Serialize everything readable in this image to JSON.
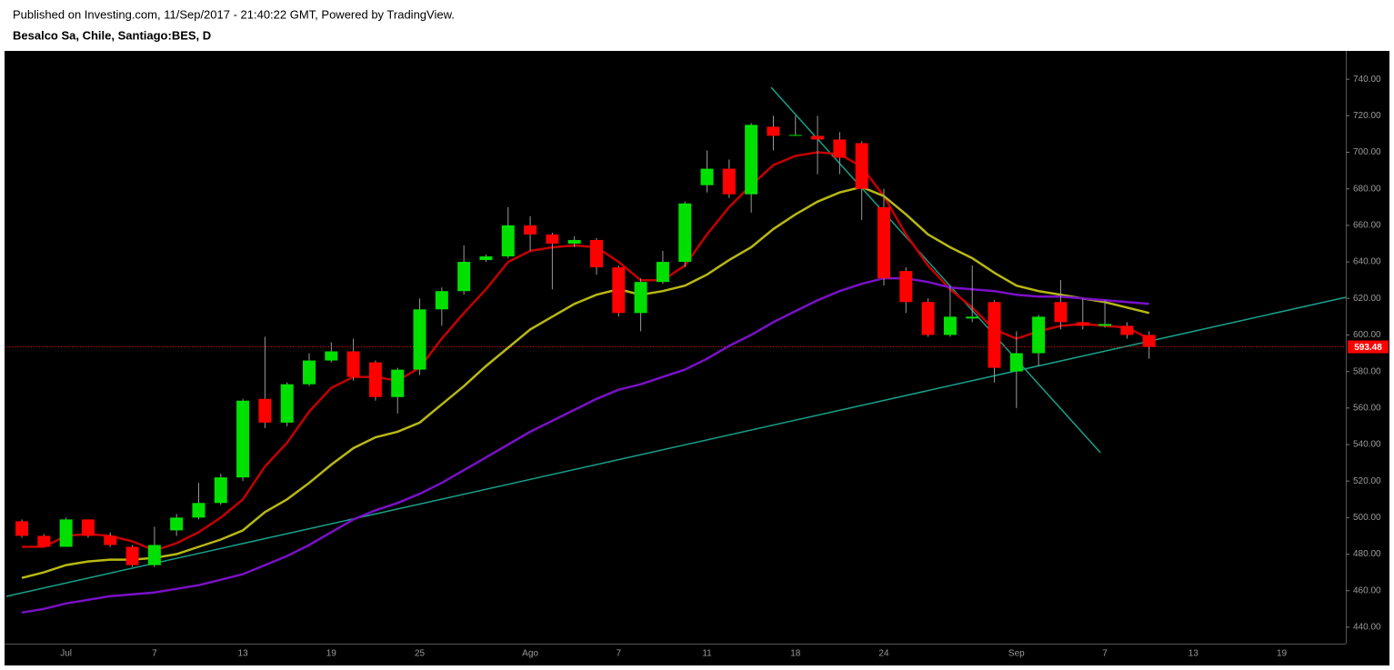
{
  "header": {
    "published": "Published on Investing.com, 11/Sep/2017 - 21:40:22 GMT, Powered by TradingView.",
    "symbol": "Besalco Sa, Chile, Santiago:BES, D"
  },
  "chart_data": {
    "type": "candlestick",
    "categories": [
      null,
      null,
      "Jul",
      null,
      null,
      null,
      "7",
      null,
      null,
      null,
      "13",
      null,
      null,
      null,
      "19",
      null,
      null,
      null,
      "25",
      null,
      null,
      null,
      null,
      "Ago",
      null,
      null,
      null,
      "7",
      null,
      null,
      null,
      "11",
      null,
      null,
      null,
      "18",
      null,
      null,
      null,
      "24",
      null,
      null,
      null,
      null,
      null,
      "Sep",
      null,
      null,
      null,
      "7",
      null,
      null,
      null,
      "13",
      null,
      null,
      null,
      "19",
      null,
      null
    ],
    "open": [
      498,
      490,
      484,
      499,
      490,
      484,
      474,
      493,
      500,
      508,
      522,
      565,
      552,
      573,
      586,
      591,
      585,
      566,
      581,
      614,
      624,
      641,
      643,
      660,
      655,
      650,
      652,
      637,
      612,
      629,
      640,
      682,
      691,
      677,
      714,
      709,
      709,
      707,
      705,
      670,
      635,
      618,
      600,
      609,
      618,
      580,
      590,
      618,
      607,
      605,
      605,
      600,
      null,
      null,
      null,
      null,
      null,
      null,
      null,
      null
    ],
    "high": [
      499,
      491,
      500,
      499,
      492,
      485,
      495,
      502,
      519,
      524,
      565,
      599,
      574,
      590,
      596,
      598,
      586,
      582,
      620,
      626,
      649,
      644,
      670,
      665,
      656,
      654,
      653,
      638,
      631,
      646,
      673,
      701,
      696,
      716,
      720,
      720,
      720,
      711,
      706,
      680,
      637,
      620,
      627,
      638,
      619,
      602,
      611,
      630,
      620,
      619,
      607,
      602,
      null,
      null,
      null,
      null,
      null,
      null,
      null,
      null
    ],
    "low": [
      489,
      484,
      484,
      489,
      484,
      473,
      473,
      490,
      499,
      507,
      520,
      549,
      550,
      572,
      585,
      575,
      564,
      557,
      578,
      605,
      622,
      640,
      642,
      646,
      625,
      648,
      633,
      610,
      602,
      628,
      637,
      678,
      675,
      667,
      701,
      709,
      688,
      688,
      663,
      627,
      612,
      599,
      599,
      607,
      574,
      560,
      583,
      603,
      603,
      604,
      598,
      587,
      null,
      null,
      null,
      null,
      null,
      null,
      null,
      null
    ],
    "close": [
      490,
      484,
      499,
      490,
      485,
      474,
      485,
      500,
      508,
      522,
      564,
      552,
      573,
      586,
      591,
      577,
      566,
      581,
      614,
      624,
      640,
      643,
      660,
      655,
      650,
      652,
      637,
      612,
      629,
      640,
      672,
      691,
      677,
      715,
      709,
      709.5,
      707,
      697,
      680,
      631,
      618,
      600,
      610,
      610,
      582,
      590,
      610,
      607,
      605,
      606,
      600,
      593.48,
      null,
      null,
      null,
      null,
      null,
      null,
      null,
      null
    ],
    "up_color": "#00e000",
    "down_color": "#ff0000",
    "wick_color": "#9a9a9a",
    "overlays": [
      {
        "color": "#c40000",
        "values": [
          484,
          484,
          490,
          491,
          490,
          487,
          482,
          486,
          492,
          500,
          510,
          528,
          541,
          558,
          571,
          577,
          577,
          575,
          582,
          598,
          612,
          625,
          640,
          646,
          648,
          649,
          648,
          640,
          630,
          630,
          638,
          655,
          670,
          682,
          693,
          698,
          700,
          699,
          692,
          676,
          655,
          638,
          625,
          615,
          603,
          598,
          602,
          605,
          606,
          605,
          604,
          598,
          null,
          null,
          null,
          null,
          null,
          null,
          null,
          null
        ]
      },
      {
        "color": "#b8b814",
        "values": [
          467,
          470,
          474,
          476,
          477,
          477,
          478,
          480,
          484,
          488,
          493,
          503,
          510,
          519,
          529,
          538,
          544,
          547,
          552,
          562,
          572,
          583,
          593,
          603,
          610,
          617,
          622,
          625,
          622,
          624,
          627,
          633,
          641,
          648,
          658,
          666,
          673,
          678,
          681,
          676,
          666,
          655,
          648,
          642,
          634,
          627,
          624,
          622,
          620,
          618,
          615,
          612,
          null,
          null,
          null,
          null,
          null,
          null,
          null,
          null
        ]
      },
      {
        "color": "#7a10c8",
        "values": [
          448,
          450,
          453,
          455,
          457,
          458,
          459,
          461,
          463,
          466,
          469,
          474,
          479,
          485,
          492,
          499,
          504,
          508,
          513,
          519,
          526,
          533,
          540,
          547,
          553,
          559,
          565,
          570,
          573,
          577,
          581,
          587,
          594,
          600,
          607,
          613,
          619,
          624,
          628,
          631,
          631,
          629,
          626,
          625,
          624,
          622,
          621,
          621,
          620,
          619,
          618,
          617,
          null,
          null,
          null,
          null,
          null,
          null,
          null,
          null
        ]
      }
    ],
    "trendlines": [
      {
        "color": "#17a08a",
        "x": [
          -0.7,
          59.9
        ],
        "y": [
          456.9,
          620.6
        ]
      },
      {
        "color": "#17a08a",
        "x": [
          33.9,
          48.8
        ],
        "y": [
          735.5,
          535.5
        ]
      }
    ],
    "last_price": 593.48,
    "last_price_color": "#ff0000",
    "xlim": [
      -0.7,
      59.9
    ],
    "ylim": [
      431,
      755
    ],
    "yticks": [
      {
        "value": 440,
        "label": "440.00"
      },
      {
        "value": 460,
        "label": "460.00"
      },
      {
        "value": 480,
        "label": "480.00"
      },
      {
        "value": 500,
        "label": "500.00"
      },
      {
        "value": 520,
        "label": "520.00"
      },
      {
        "value": 540,
        "label": "540.00"
      },
      {
        "value": 560,
        "label": "560.00"
      },
      {
        "value": 580,
        "label": "580.00"
      },
      {
        "value": 600,
        "label": "600.00"
      },
      {
        "value": 620,
        "label": "620.00"
      },
      {
        "value": 640,
        "label": "640.00"
      },
      {
        "value": 660,
        "label": "660.00"
      },
      {
        "value": 680,
        "label": "680.00"
      },
      {
        "value": 700,
        "label": "700.00"
      },
      {
        "value": 720,
        "label": "720.00"
      },
      {
        "value": 740,
        "label": "740.00"
      }
    ]
  }
}
